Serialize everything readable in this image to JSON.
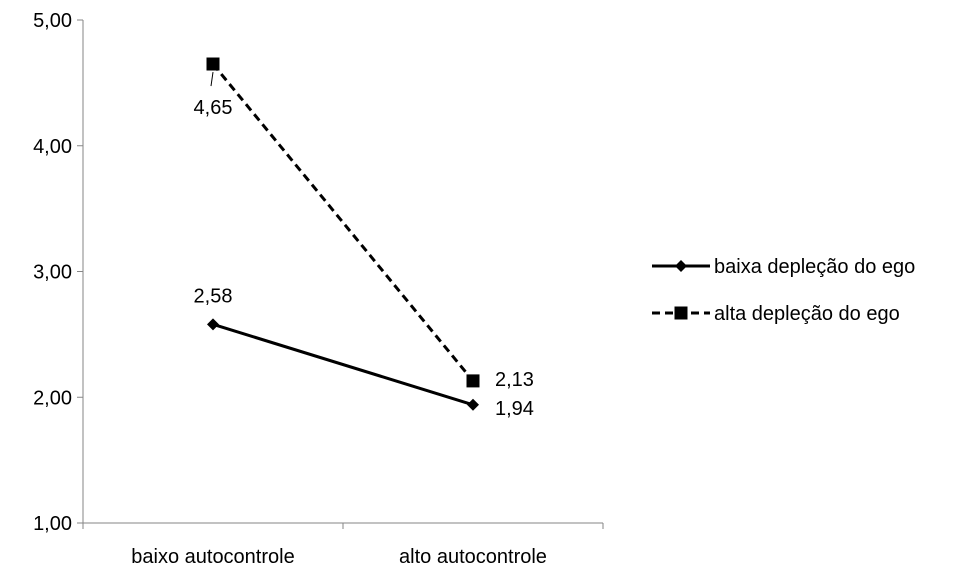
{
  "chart_data": {
    "type": "line",
    "title": "",
    "xlabel": "",
    "ylabel": "",
    "categories": [
      "baixo autocontrole",
      "alto autocontrole"
    ],
    "ylim": [
      1,
      5
    ],
    "yticks": [
      "1,00",
      "2,00",
      "3,00",
      "4,00",
      "5,00"
    ],
    "yticks_values": [
      1,
      2,
      3,
      4,
      5
    ],
    "grid": false,
    "legend_position": "right",
    "series": [
      {
        "name": "baixa depleção do ego",
        "values": [
          2.58,
          1.94
        ],
        "value_labels": [
          "2,58",
          "1,94"
        ],
        "line_style": "solid",
        "marker": "diamond",
        "color": "#000000"
      },
      {
        "name": "alta depleção do ego",
        "values": [
          4.65,
          2.13
        ],
        "value_labels": [
          "4,65",
          "2,13"
        ],
        "line_style": "dashed",
        "marker": "square",
        "color": "#000000"
      }
    ]
  }
}
